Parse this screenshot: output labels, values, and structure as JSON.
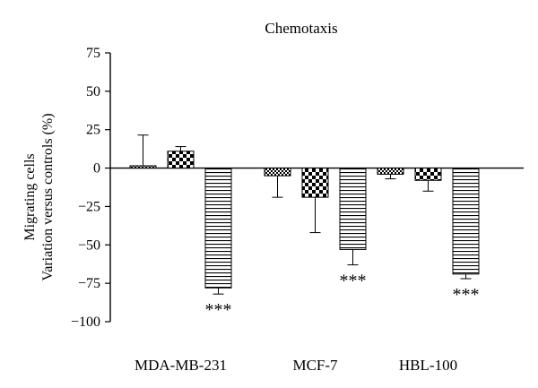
{
  "chart_data": {
    "type": "bar",
    "title": "Chemotaxis",
    "ylabel_line1": "Migrating cells",
    "ylabel_line2": "Variation versus controls (%)",
    "xlabel": "",
    "ylim": [
      -100,
      75
    ],
    "yticks": [
      "75",
      "50",
      "25",
      "0",
      "−25",
      "−50",
      "−75",
      "−100"
    ],
    "ytick_values": [
      75,
      50,
      25,
      0,
      -25,
      -50,
      -75,
      -100
    ],
    "grid": false,
    "legend": "none",
    "categories": [
      "MDA-MB-231",
      "MCF-7",
      "HBL-100"
    ],
    "series": [
      {
        "pattern": "fine-checker",
        "values": [
          1.5,
          -5,
          -4
        ],
        "errors": [
          20,
          14,
          3
        ]
      },
      {
        "pattern": "coarse-checker",
        "values": [
          11,
          -19,
          -8
        ],
        "errors": [
          3,
          23,
          7
        ]
      },
      {
        "pattern": "horizontal-lines",
        "values": [
          -78,
          -53,
          -69
        ],
        "errors": [
          4,
          10,
          3
        ]
      }
    ],
    "annotations": [
      {
        "category": "MDA-MB-231",
        "series": 2,
        "text": "***"
      },
      {
        "category": "MCF-7",
        "series": 2,
        "text": "***"
      },
      {
        "category": "HBL-100",
        "series": 2,
        "text": "***"
      }
    ]
  }
}
